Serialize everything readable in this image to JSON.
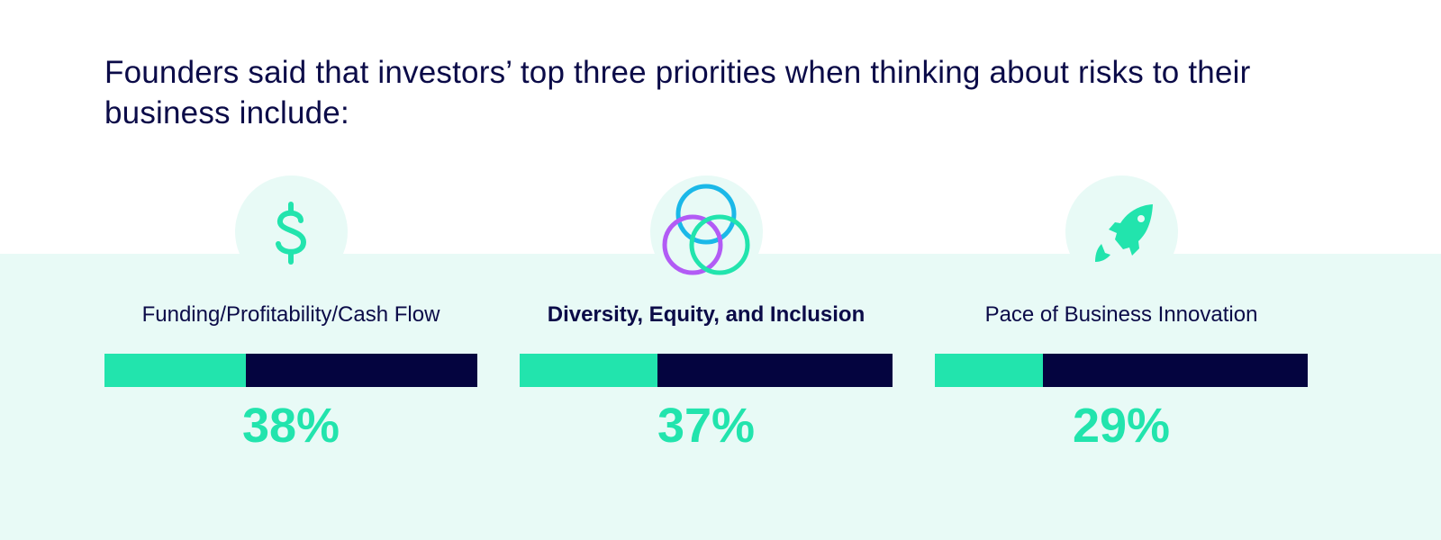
{
  "title": "Founders said that investors’ top three priorities when thinking about risks to their business include:",
  "colors": {
    "accent": "#22e4ad",
    "navy": "#04043f",
    "background_band": "#e8faf6",
    "blue": "#1bb8e8",
    "purple": "#b25bf5"
  },
  "chart_data": {
    "type": "bar",
    "categories": [
      "Funding/Profitability/Cash Flow",
      "Diversity, Equity, and Inclusion",
      "Pace of Business Innovation"
    ],
    "values": [
      38,
      37,
      29
    ],
    "labels": [
      "38%",
      "37%",
      "29%"
    ],
    "icons": [
      "dollar-icon",
      "venn-circles-icon",
      "rocket-icon"
    ],
    "ylim": [
      0,
      100
    ]
  }
}
